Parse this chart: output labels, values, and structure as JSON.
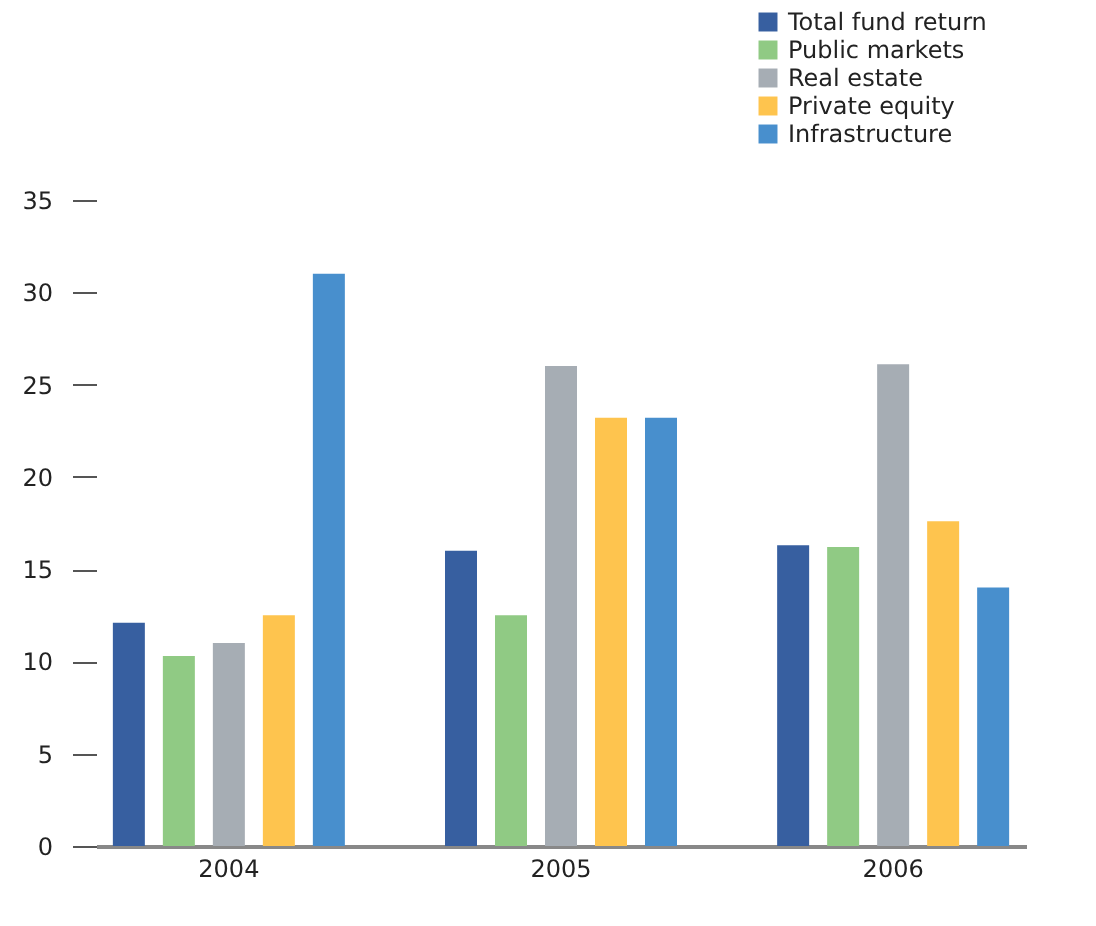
{
  "chart_data": {
    "type": "bar",
    "categories": [
      "2004",
      "2005",
      "2006"
    ],
    "series": [
      {
        "name": "Total fund return",
        "color": "#375fa0",
        "values": [
          12.1,
          16.0,
          16.3
        ]
      },
      {
        "name": "Public markets",
        "color": "#90ca84",
        "values": [
          10.3,
          12.5,
          16.2
        ]
      },
      {
        "name": "Real estate",
        "color": "#a6adb4",
        "values": [
          11.0,
          26.0,
          26.1
        ]
      },
      {
        "name": "Private equity",
        "color": "#fec44e",
        "values": [
          12.5,
          23.2,
          17.6
        ]
      },
      {
        "name": "Infrastructure",
        "color": "#488fcd",
        "values": [
          31.0,
          23.2,
          14.0
        ]
      }
    ],
    "ylim": [
      0,
      35
    ],
    "yticks": [
      0,
      5,
      10,
      15,
      20,
      25,
      30,
      35
    ],
    "grid": false,
    "legend": "top right"
  }
}
